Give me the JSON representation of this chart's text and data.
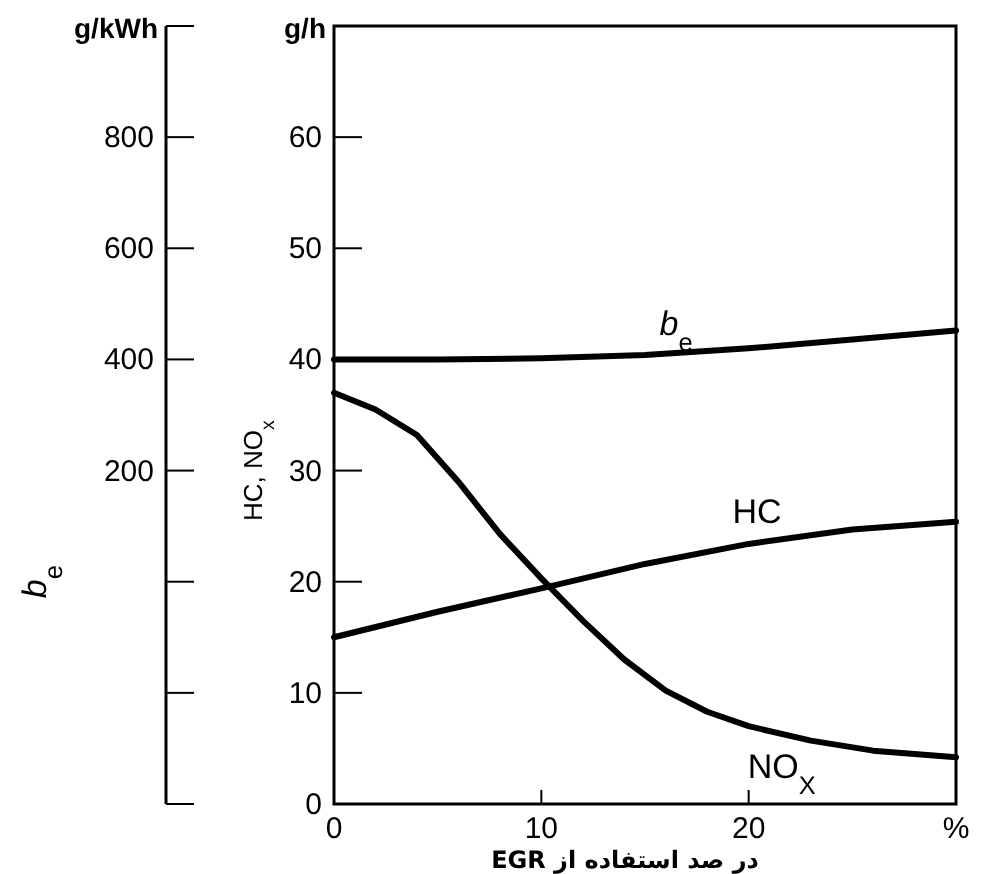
{
  "chart_data": {
    "type": "line",
    "xlabel": "در صد استفاده از EGR",
    "ylabel": "HC, NO$_{x}$",
    "y2label": "b$_{e}$",
    "annotations": [
      "g/h",
      "g/kWh"
    ],
    "xlim": [
      0,
      30
    ],
    "xticks": [
      0,
      10,
      20,
      {
        "value": 30,
        "label": "%"
      }
    ],
    "ylim": [
      0,
      70
    ],
    "yticks": [
      0,
      10,
      20,
      30,
      40,
      50,
      60
    ],
    "y2lim": [
      -400,
      1000
    ],
    "y2ticks": [
      {
        "value": -400,
        "label": null
      },
      {
        "value": -200,
        "label": null
      },
      {
        "value": 0,
        "label": null
      },
      200,
      400,
      600,
      800,
      {
        "value": 1000,
        "label": null
      }
    ],
    "grid": false,
    "marker": "none",
    "line_style": "solid",
    "series": [
      {
        "name": "b$_{e}$",
        "color": "#000000",
        "x": [
          0,
          5,
          10,
          15,
          20,
          25,
          30
        ],
        "values": [
          40,
          40,
          40.1,
          40.4,
          41,
          41.8,
          42.6
        ]
      },
      {
        "name": "HC",
        "color": "#000000",
        "x": [
          0,
          5,
          10,
          15,
          20,
          25,
          30
        ],
        "values": [
          15,
          17.3,
          19.4,
          21.6,
          23.4,
          24.7,
          25.4
        ]
      },
      {
        "name": "NO$_{X}$",
        "color": "#000000",
        "x": [
          0,
          2,
          4,
          6,
          8,
          10,
          12,
          14,
          16,
          18,
          20,
          23,
          26,
          30
        ],
        "values": [
          37,
          35.5,
          33.2,
          29,
          24.3,
          20.3,
          16.5,
          13,
          10.2,
          8.3,
          7,
          5.7,
          4.8,
          4.2
        ]
      }
    ]
  }
}
